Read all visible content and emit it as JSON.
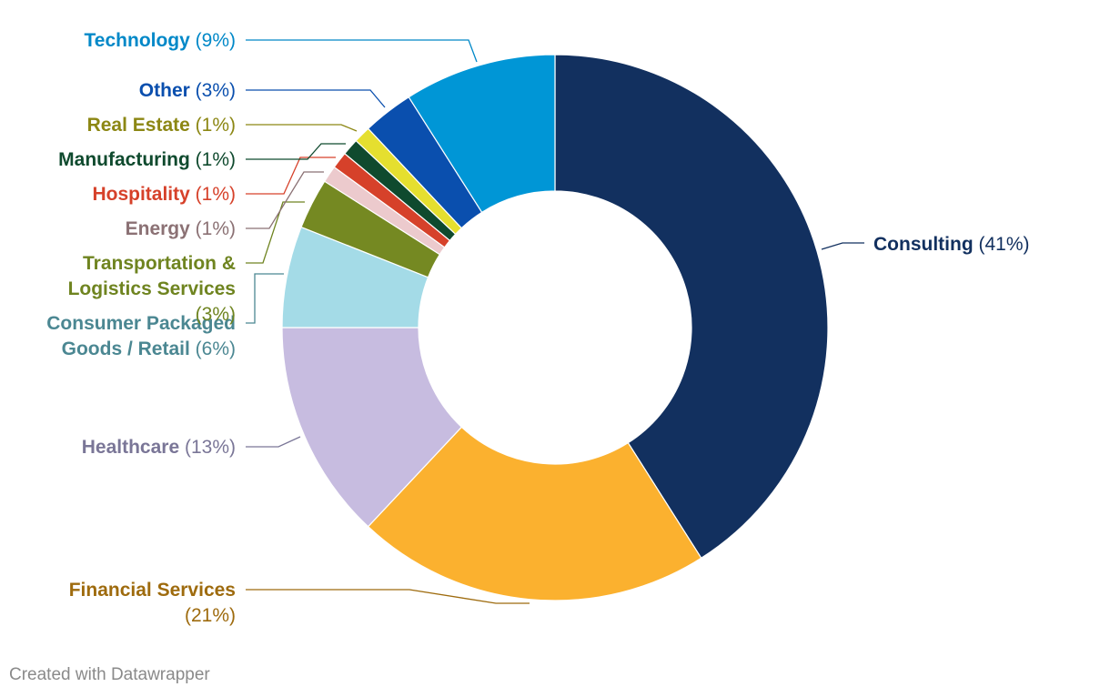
{
  "chart_data": {
    "type": "pie",
    "variant": "donut",
    "slices": [
      {
        "label": "Consulting",
        "value": 41,
        "color": "#12305f"
      },
      {
        "label": "Financial Services",
        "value": 21,
        "color": "#fbb12f"
      },
      {
        "label": "Healthcare",
        "value": 13,
        "color": "#c7bce0"
      },
      {
        "label": "Consumer Packaged Goods / Retail",
        "value": 6,
        "color": "#a4dbe7"
      },
      {
        "label": "Transportation & Logistics Services",
        "value": 3,
        "color": "#758922"
      },
      {
        "label": "Energy",
        "value": 1,
        "color": "#eccacd"
      },
      {
        "label": "Hospitality",
        "value": 1,
        "color": "#d6412a"
      },
      {
        "label": "Manufacturing",
        "value": 1,
        "color": "#0f4a2e"
      },
      {
        "label": "Real Estate",
        "value": 1,
        "color": "#e5df2f"
      },
      {
        "label": "Other",
        "value": 3,
        "color": "#0a4fae"
      },
      {
        "label": "Technology",
        "value": 9,
        "color": "#0096d6"
      }
    ],
    "labels": [
      {
        "lines": [
          [
            {
              "t": "Consulting",
              "b": true
            },
            {
              "t": " (41%)",
              "b": false
            }
          ]
        ],
        "color": "#12305f",
        "align": "start"
      },
      {
        "lines": [
          [
            {
              "t": "Financial Services",
              "b": true
            }
          ],
          [
            {
              "t": "(21%)",
              "b": false
            }
          ]
        ],
        "color": "#9e6b0e",
        "align": "end"
      },
      {
        "lines": [
          [
            {
              "t": "Healthcare",
              "b": true
            },
            {
              "t": " (13%)",
              "b": false
            }
          ]
        ],
        "color": "#7a7697",
        "align": "end"
      },
      {
        "lines": [
          [
            {
              "t": "Consumer Packaged",
              "b": true
            }
          ],
          [
            {
              "t": "Goods / Retail",
              "b": true
            },
            {
              "t": " (6%)",
              "b": false
            }
          ]
        ],
        "color": "#4b8792",
        "align": "end"
      },
      {
        "lines": [
          [
            {
              "t": "Transportation &",
              "b": true
            }
          ],
          [
            {
              "t": "Logistics Services",
              "b": true
            }
          ],
          [
            {
              "t": "(3%)",
              "b": false
            }
          ]
        ],
        "color": "#6f8420",
        "align": "end"
      },
      {
        "lines": [
          [
            {
              "t": "Energy",
              "b": true
            },
            {
              "t": " (1%)",
              "b": false
            }
          ]
        ],
        "color": "#8b7174",
        "align": "end"
      },
      {
        "lines": [
          [
            {
              "t": "Hospitality",
              "b": true
            },
            {
              "t": " (1%)",
              "b": false
            }
          ]
        ],
        "color": "#d6412a",
        "align": "end"
      },
      {
        "lines": [
          [
            {
              "t": "Manufacturing",
              "b": true
            },
            {
              "t": " (1%)",
              "b": false
            }
          ]
        ],
        "color": "#0f4a2e",
        "align": "end"
      },
      {
        "lines": [
          [
            {
              "t": "Real Estate",
              "b": true
            },
            {
              "t": " (1%)",
              "b": false
            }
          ]
        ],
        "color": "#8c8714",
        "align": "end"
      },
      {
        "lines": [
          [
            {
              "t": "Other",
              "b": true
            },
            {
              "t": " (3%)",
              "b": false
            }
          ]
        ],
        "color": "#0a4fae",
        "align": "end"
      },
      {
        "lines": [
          [
            {
              "t": "Technology",
              "b": true
            },
            {
              "t": " (9%)",
              "b": false
            }
          ]
        ],
        "color": "#0088c8",
        "align": "end"
      }
    ],
    "legend": "none",
    "credit": "Created with Datawrapper"
  }
}
